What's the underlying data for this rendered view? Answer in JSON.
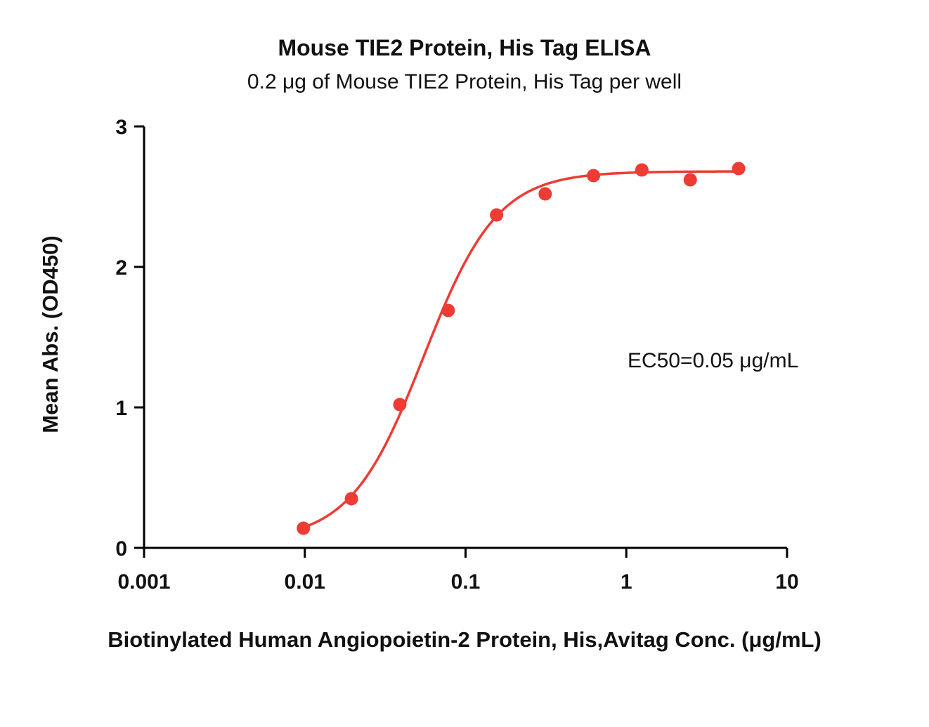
{
  "chart_data": {
    "type": "scatter",
    "title": "Mouse TIE2 Protein, His Tag ELISA",
    "subtitle": "0.2 μg of Mouse TIE2 Protein, His Tag per well",
    "xlabel": "Biotinylated Human Angiopoietin-2 Protein, His,Avitag Conc. (μg/mL)",
    "ylabel": "Mean Abs. (OD450)",
    "annotation": "EC50=0.05 μg/mL",
    "ec50_value": 0.05,
    "xscale": "log",
    "yscale": "linear",
    "xlim": [
      0.001,
      10
    ],
    "ylim": [
      0,
      3
    ],
    "grid": false,
    "legend": "none",
    "x": [
      0.0098,
      0.0195,
      0.039,
      0.078,
      0.156,
      0.313,
      0.625,
      1.25,
      2.5,
      5
    ],
    "y": [
      0.14,
      0.35,
      1.02,
      1.69,
      2.37,
      2.52,
      2.65,
      2.69,
      2.62,
      2.7
    ],
    "x_ticks": [
      {
        "value": 0.001,
        "label": "0.001"
      },
      {
        "value": 0.01,
        "label": "0.01"
      },
      {
        "value": 0.1,
        "label": "0.1"
      },
      {
        "value": 1,
        "label": "1"
      },
      {
        "value": 10,
        "label": "10"
      }
    ],
    "y_ticks": [
      {
        "value": 0,
        "label": "0"
      },
      {
        "value": 1,
        "label": "1"
      },
      {
        "value": 2,
        "label": "2"
      },
      {
        "value": 3,
        "label": "3"
      }
    ],
    "fit": {
      "model": "4PL",
      "bottom": 0.05,
      "top": 2.68,
      "ec50": 0.055,
      "hill": 1.9
    },
    "line_color": "#ee3b33",
    "point_color": "#ee3b33",
    "point_radius": 9.5,
    "axis_color": "#000000"
  }
}
